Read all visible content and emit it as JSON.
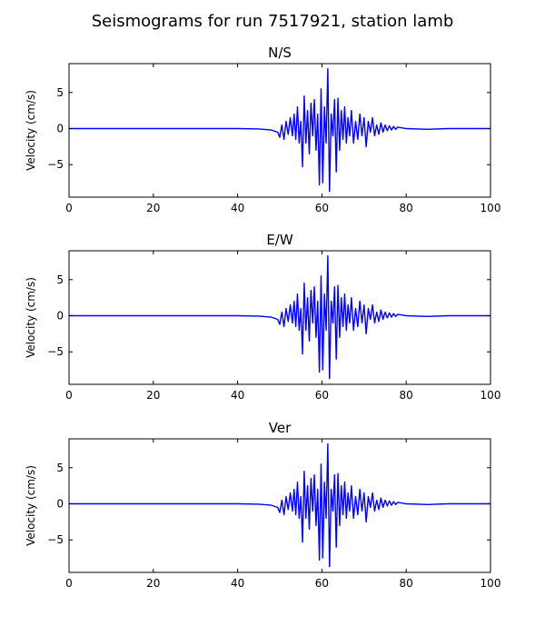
{
  "figure": {
    "title": "Seismograms for run 7517921, station lamb"
  },
  "chart_data": [
    {
      "type": "line",
      "title": "N/S",
      "xlabel": "",
      "ylabel": "Velocity (cm/s)",
      "xlim": [
        0,
        100
      ],
      "ylim": [
        -9.5,
        9
      ],
      "xticks": [
        0,
        20,
        40,
        60,
        80,
        100
      ],
      "yticks": [
        5,
        0,
        -5
      ],
      "ytick_labels": [
        "5",
        "0",
        "−5"
      ],
      "grid": false,
      "color": "#0000ff",
      "series": [
        {
          "x": [
            0,
            20,
            40,
            45,
            48,
            49.5,
            50,
            50.5,
            51,
            51.5,
            52,
            52.5,
            53,
            53.4,
            53.8,
            54.2,
            54.6,
            55,
            55.4,
            55.8,
            56.2,
            56.6,
            57,
            57.4,
            57.8,
            58.2,
            58.6,
            59,
            59.4,
            59.8,
            60.2,
            60.6,
            61,
            61.4,
            61.8,
            62.2,
            62.6,
            63,
            63.4,
            63.8,
            64.2,
            64.6,
            65,
            65.4,
            65.8,
            66.2,
            66.6,
            67,
            67.5,
            68,
            68.5,
            69,
            69.5,
            70,
            70.5,
            71,
            71.5,
            72,
            72.5,
            73,
            73.5,
            74,
            74.5,
            75,
            75.5,
            76,
            76.5,
            77,
            77.5,
            78,
            80,
            85,
            90,
            100
          ],
          "y": [
            0,
            0,
            0,
            -0.05,
            -0.2,
            -0.5,
            -1.2,
            0.5,
            -1.5,
            1.0,
            -0.8,
            1.5,
            -1.0,
            2.0,
            -1.5,
            3.0,
            -2.0,
            1.0,
            -5.3,
            4.5,
            -2.0,
            2.5,
            -3.5,
            3.5,
            -1.0,
            4.0,
            -3.0,
            2.0,
            -7.8,
            5.5,
            -7.5,
            3.0,
            -2.0,
            8.3,
            -8.7,
            2.0,
            -1.0,
            4.0,
            -6.0,
            4.2,
            -3.0,
            2.5,
            -1.5,
            3.0,
            -2.0,
            1.5,
            -1.0,
            2.5,
            -2.0,
            1.0,
            -1.5,
            2.0,
            -1.0,
            1.5,
            -2.5,
            1.0,
            -0.5,
            1.5,
            -1.0,
            0.5,
            -0.8,
            0.8,
            -0.5,
            0.5,
            -0.3,
            0.4,
            -0.2,
            0.3,
            -0.1,
            0.2,
            0,
            -0.1,
            0,
            0
          ]
        }
      ]
    },
    {
      "type": "line",
      "title": "E/W",
      "xlabel": "",
      "ylabel": "Velocity (cm/s)",
      "xlim": [
        0,
        100
      ],
      "ylim": [
        -9.5,
        9
      ],
      "xticks": [
        0,
        20,
        40,
        60,
        80,
        100
      ],
      "yticks": [
        5,
        0,
        -5
      ],
      "ytick_labels": [
        "5",
        "0",
        "−5"
      ],
      "grid": false,
      "color": "#0000ff",
      "series": [
        {
          "x": [
            0,
            20,
            40,
            45,
            48,
            49.5,
            50,
            50.5,
            51,
            51.5,
            52,
            52.5,
            53,
            53.4,
            53.8,
            54.2,
            54.6,
            55,
            55.4,
            55.8,
            56.2,
            56.6,
            57,
            57.4,
            57.8,
            58.2,
            58.6,
            59,
            59.4,
            59.8,
            60.2,
            60.6,
            61,
            61.4,
            61.8,
            62.2,
            62.6,
            63,
            63.4,
            63.8,
            64.2,
            64.6,
            65,
            65.4,
            65.8,
            66.2,
            66.6,
            67,
            67.5,
            68,
            68.5,
            69,
            69.5,
            70,
            70.5,
            71,
            71.5,
            72,
            72.5,
            73,
            73.5,
            74,
            74.5,
            75,
            75.5,
            76,
            76.5,
            77,
            77.5,
            78,
            80,
            85,
            90,
            100
          ],
          "y": [
            0,
            0,
            0,
            -0.05,
            -0.2,
            -0.5,
            -1.2,
            0.5,
            -1.5,
            1.0,
            -0.8,
            1.5,
            -1.0,
            2.0,
            -1.5,
            3.0,
            -2.0,
            1.0,
            -5.3,
            4.5,
            -2.0,
            2.5,
            -3.5,
            3.5,
            -1.0,
            4.0,
            -3.0,
            2.0,
            -7.8,
            5.5,
            -7.5,
            3.0,
            -2.0,
            8.3,
            -8.7,
            2.0,
            -1.0,
            4.0,
            -6.0,
            4.2,
            -3.0,
            2.5,
            -1.5,
            3.0,
            -2.0,
            1.5,
            -1.0,
            2.5,
            -2.0,
            1.0,
            -1.5,
            2.0,
            -1.0,
            1.5,
            -2.5,
            1.0,
            -0.5,
            1.5,
            -1.0,
            0.5,
            -0.8,
            0.8,
            -0.5,
            0.5,
            -0.3,
            0.4,
            -0.2,
            0.3,
            -0.1,
            0.2,
            0,
            -0.1,
            0,
            0
          ]
        }
      ]
    },
    {
      "type": "line",
      "title": "Ver",
      "xlabel": "",
      "ylabel": "Velocity (cm/s)",
      "xlim": [
        0,
        100
      ],
      "ylim": [
        -9.5,
        9
      ],
      "xticks": [
        0,
        20,
        40,
        60,
        80,
        100
      ],
      "yticks": [
        5,
        0,
        -5
      ],
      "ytick_labels": [
        "5",
        "0",
        "−5"
      ],
      "grid": false,
      "color": "#0000ff",
      "series": [
        {
          "x": [
            0,
            20,
            40,
            45,
            48,
            49.5,
            50,
            50.5,
            51,
            51.5,
            52,
            52.5,
            53,
            53.4,
            53.8,
            54.2,
            54.6,
            55,
            55.4,
            55.8,
            56.2,
            56.6,
            57,
            57.4,
            57.8,
            58.2,
            58.6,
            59,
            59.4,
            59.8,
            60.2,
            60.6,
            61,
            61.4,
            61.8,
            62.2,
            62.6,
            63,
            63.4,
            63.8,
            64.2,
            64.6,
            65,
            65.4,
            65.8,
            66.2,
            66.6,
            67,
            67.5,
            68,
            68.5,
            69,
            69.5,
            70,
            70.5,
            71,
            71.5,
            72,
            72.5,
            73,
            73.5,
            74,
            74.5,
            75,
            75.5,
            76,
            76.5,
            77,
            77.5,
            78,
            80,
            85,
            90,
            100
          ],
          "y": [
            0,
            0,
            0,
            -0.05,
            -0.2,
            -0.5,
            -1.2,
            0.5,
            -1.5,
            1.0,
            -0.8,
            1.5,
            -1.0,
            2.0,
            -1.5,
            3.0,
            -2.0,
            1.0,
            -5.3,
            4.5,
            -2.0,
            2.5,
            -3.5,
            3.5,
            -1.0,
            4.0,
            -3.0,
            2.0,
            -7.8,
            5.5,
            -7.5,
            3.0,
            -2.0,
            8.3,
            -8.7,
            2.0,
            -1.0,
            4.0,
            -6.0,
            4.2,
            -3.0,
            2.5,
            -1.5,
            3.0,
            -2.0,
            1.5,
            -1.0,
            2.5,
            -2.0,
            1.0,
            -1.5,
            2.0,
            -1.0,
            1.5,
            -2.5,
            1.0,
            -0.5,
            1.5,
            -1.0,
            0.5,
            -0.8,
            0.8,
            -0.5,
            0.5,
            -0.3,
            0.4,
            -0.2,
            0.3,
            -0.1,
            0.2,
            0,
            -0.1,
            0,
            0
          ]
        }
      ]
    }
  ]
}
